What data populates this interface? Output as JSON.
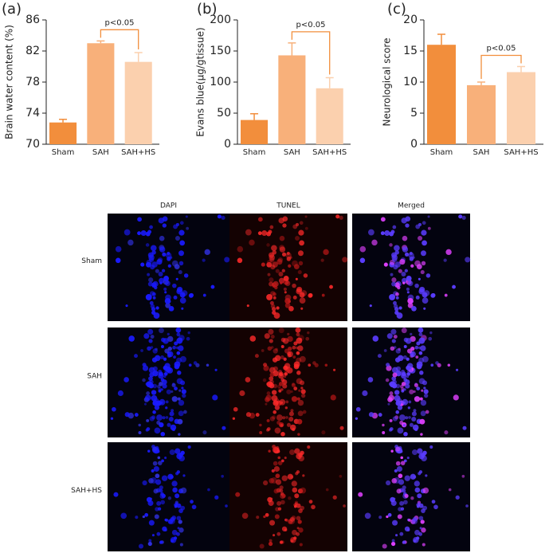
{
  "chart_data": [
    {
      "type": "bar",
      "panel_label": "(a)",
      "ylabel": "Brain water content (%)",
      "categories": [
        "Sham",
        "SAH",
        "SAH+HS"
      ],
      "values": [
        72.8,
        83.0,
        80.6
      ],
      "errors": [
        0.4,
        0.3,
        1.2
      ],
      "colors": [
        "#f28e3c",
        "#f8b07a",
        "#fbd0ae"
      ],
      "ylim": [
        70,
        86
      ],
      "yticks": [
        70,
        74,
        78,
        82,
        86
      ],
      "annotation": "p<0.05"
    },
    {
      "type": "bar",
      "panel_label": "(b)",
      "ylabel": "Evans blue(μg/gtissue)",
      "categories": [
        "Sham",
        "SAH",
        "SAH+HS"
      ],
      "values": [
        39,
        143,
        90
      ],
      "errors": [
        10,
        20,
        17
      ],
      "colors": [
        "#f28e3c",
        "#f8b07a",
        "#fbd0ae"
      ],
      "ylim": [
        0,
        200
      ],
      "yticks": [
        0,
        50,
        100,
        150,
        200
      ],
      "annotation": "p<0.05"
    },
    {
      "type": "bar",
      "panel_label": "(c)",
      "ylabel": "Neurological score",
      "categories": [
        "Sham",
        "SAH",
        "SAH+HS"
      ],
      "values": [
        16,
        9.5,
        11.6
      ],
      "errors": [
        1.7,
        0.5,
        0.9
      ],
      "colors": [
        "#f28e3c",
        "#f8b07a",
        "#fbd0ae"
      ],
      "ylim": [
        0,
        20
      ],
      "yticks": [
        0,
        5,
        10,
        15,
        20
      ],
      "annotation": "p<0.05"
    }
  ],
  "image_grid": {
    "columns": [
      "DAPI",
      "TUNEL",
      "Merged"
    ],
    "rows": [
      "Sham",
      "SAH",
      "SAH+HS"
    ]
  }
}
